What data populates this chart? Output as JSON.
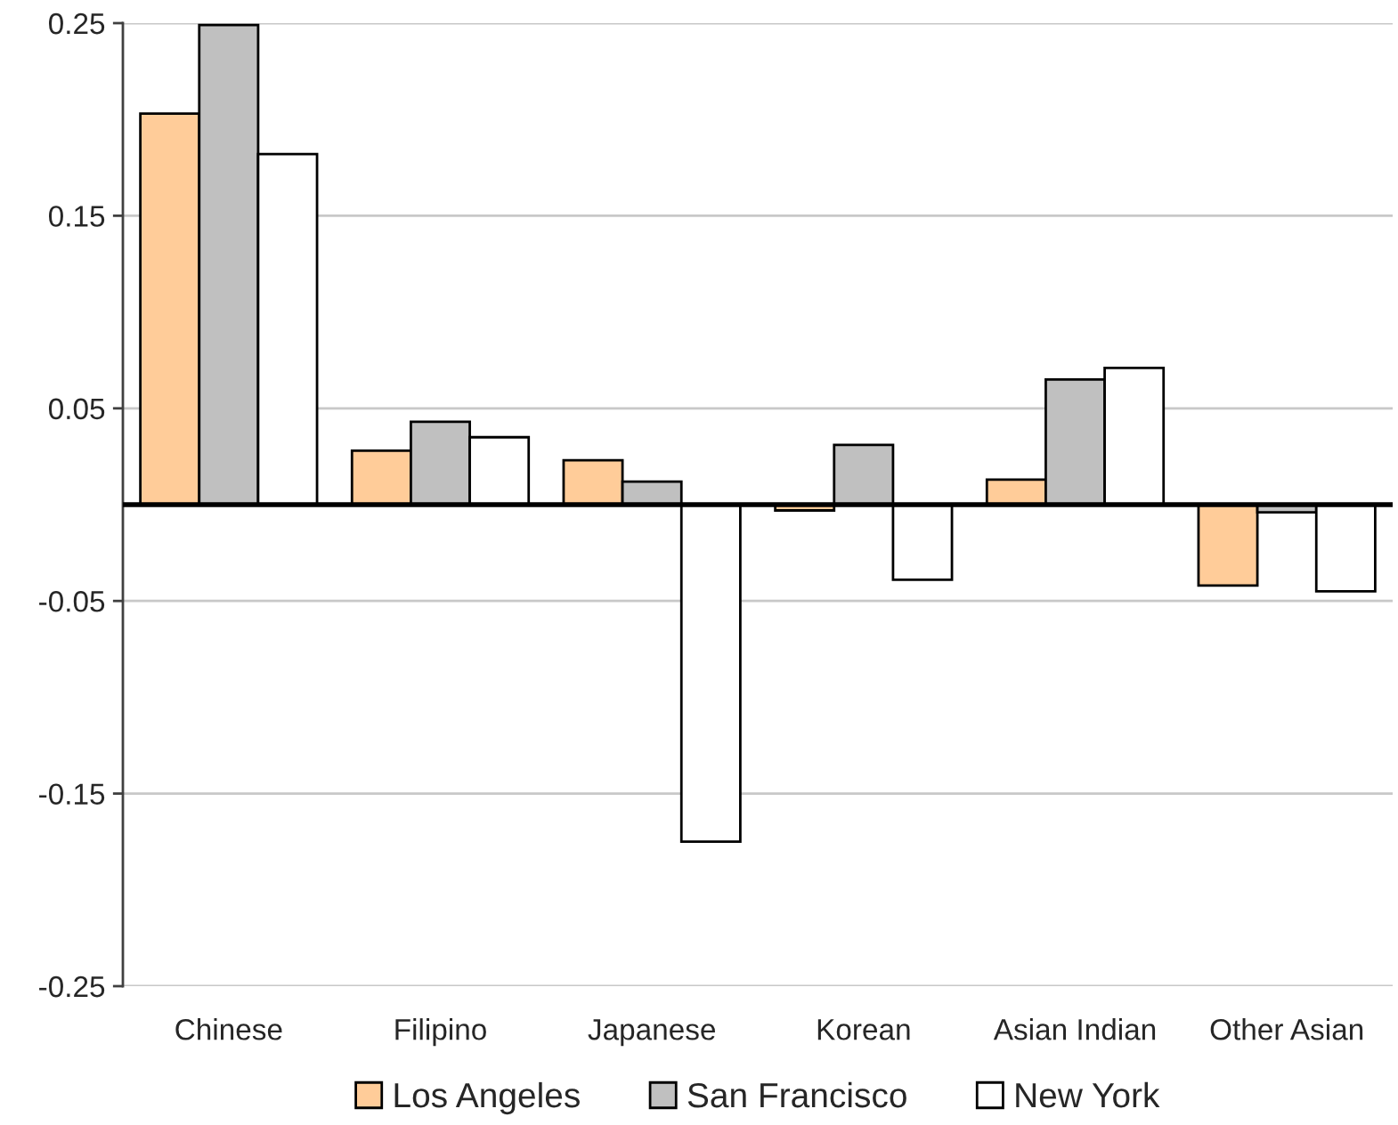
{
  "chart_data": {
    "type": "bar",
    "categories": [
      "Chinese",
      "Filipino",
      "Japanese",
      "Korean",
      "Asian Indian",
      "Other Asian"
    ],
    "series": [
      {
        "name": "Los Angeles",
        "color": "#ffcc99",
        "values": [
          0.203,
          0.028,
          0.023,
          -0.003,
          0.013,
          -0.042
        ]
      },
      {
        "name": "San Francisco",
        "color": "#c0c0c0",
        "values": [
          0.249,
          0.043,
          0.012,
          0.031,
          0.065,
          -0.004
        ]
      },
      {
        "name": "New York",
        "color": "#ffffff",
        "values": [
          0.182,
          0.035,
          -0.175,
          -0.039,
          0.071,
          -0.045
        ]
      }
    ],
    "ylim": [
      -0.25,
      0.25
    ],
    "yticks": [
      -0.25,
      -0.15,
      -0.05,
      0.05,
      0.15,
      0.25
    ],
    "grid": "y",
    "legend": "bottom"
  }
}
